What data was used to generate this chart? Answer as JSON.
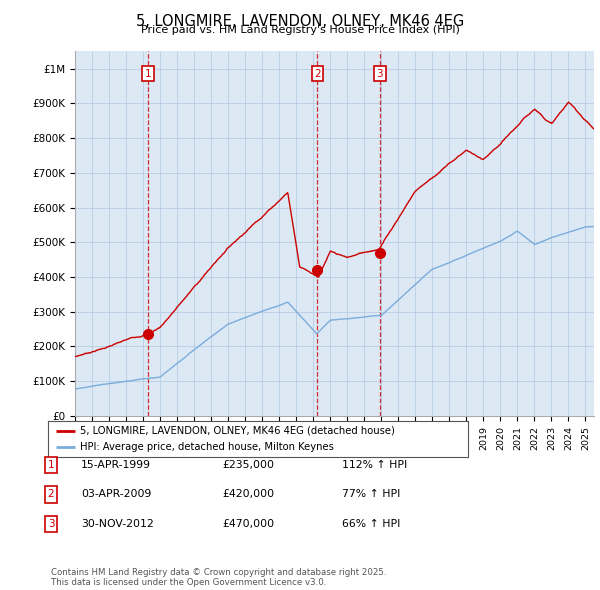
{
  "title": "5, LONGMIRE, LAVENDON, OLNEY, MK46 4EG",
  "subtitle": "Price paid vs. HM Land Registry's House Price Index (HPI)",
  "property_label": "5, LONGMIRE, LAVENDON, OLNEY, MK46 4EG (detached house)",
  "hpi_label": "HPI: Average price, detached house, Milton Keynes",
  "sale_color": "#cc0000",
  "hpi_color": "#7aacdc",
  "chart_bg": "#dce9f5",
  "transactions": [
    {
      "num": 1,
      "date": "15-APR-1999",
      "price": 235000,
      "hpi_pct": "112% ↑ HPI",
      "year": 1999.29
    },
    {
      "num": 2,
      "date": "03-APR-2009",
      "price": 420000,
      "hpi_pct": "77% ↑ HPI",
      "year": 2009.25
    },
    {
      "num": 3,
      "date": "30-NOV-2012",
      "price": 470000,
      "hpi_pct": "66% ↑ HPI",
      "year": 2012.92
    }
  ],
  "footer": "Contains HM Land Registry data © Crown copyright and database right 2025.\nThis data is licensed under the Open Government Licence v3.0.",
  "background_color": "#ffffff",
  "grid_color": "#b0c8e0"
}
